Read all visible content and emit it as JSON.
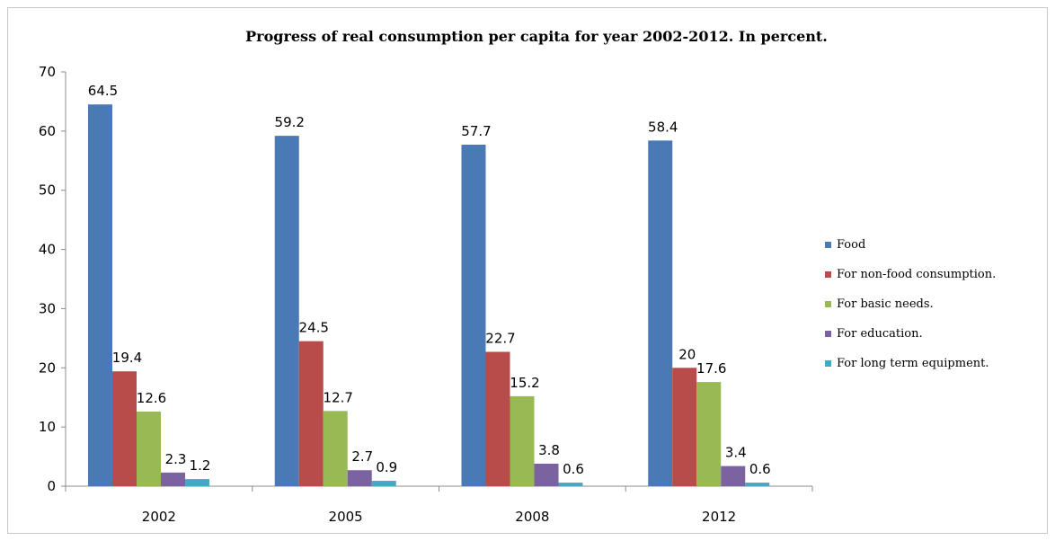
{
  "chart_data": {
    "type": "bar",
    "title": "Progress of real consumption per capita for year 2002-2012. In percent.",
    "categories": [
      "2002",
      "2005",
      "2008",
      "2012"
    ],
    "y_ticks": [
      "0",
      "10",
      "20",
      "30",
      "40",
      "50",
      "60",
      "70"
    ],
    "ylim": [
      0,
      70
    ],
    "grid": false,
    "legend_position": "right",
    "series": [
      {
        "name": "Food",
        "color": "#4a7ab5",
        "values": [
          64.5,
          59.2,
          57.7,
          58.4
        ],
        "labels": [
          "64.5",
          "59.2",
          "57.7",
          "58.4"
        ]
      },
      {
        "name": "For non-food consumption.",
        "color": "#b84c4a",
        "values": [
          19.4,
          24.5,
          22.7,
          20
        ],
        "labels": [
          "19.4",
          "24.5",
          "22.7",
          "20"
        ]
      },
      {
        "name": "For basic needs.",
        "color": "#98b954",
        "values": [
          12.6,
          12.7,
          15.2,
          17.6
        ],
        "labels": [
          "12.6",
          "12.7",
          "15.2",
          "17.6"
        ]
      },
      {
        "name": "For education.",
        "color": "#7b62a1",
        "values": [
          2.3,
          2.7,
          3.8,
          3.4
        ],
        "labels": [
          "2.3",
          "2.7",
          "3.8",
          "3.4"
        ]
      },
      {
        "name": "For long term equipment.",
        "color": "#45a8c4",
        "values": [
          1.2,
          0.9,
          0.6,
          0.6
        ],
        "labels": [
          "1.2",
          "0.9",
          "0.6",
          "0.6"
        ]
      }
    ]
  }
}
